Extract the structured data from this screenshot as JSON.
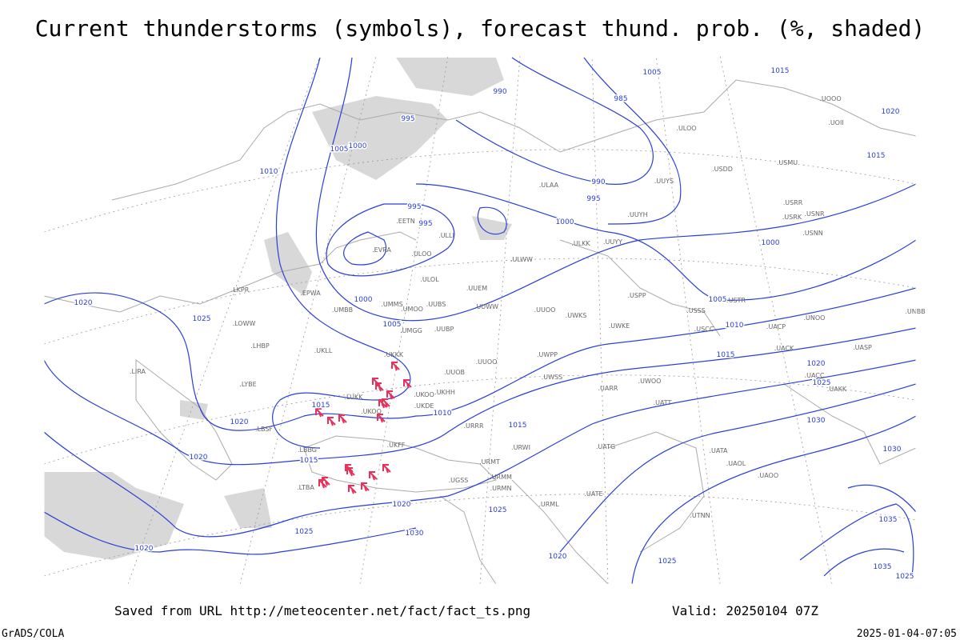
{
  "header": {
    "title": "Current thunderstorms (symbols), forecast thund. prob. (%, shaded)"
  },
  "map": {
    "isobar_labels": [
      990,
      995,
      985,
      1005,
      1015,
      1020,
      1015,
      990,
      995,
      1000,
      1000,
      1005,
      1000,
      1010,
      995,
      995,
      1000,
      1005,
      1005,
      1010,
      1015,
      1020,
      1025,
      1030,
      1020,
      1025,
      1015,
      1020,
      1010,
      1015,
      1020,
      1015,
      1020,
      1025,
      1030,
      1025,
      1020,
      1020,
      1025,
      1030,
      1035,
      1035,
      1025
    ],
    "station_labels": [
      ".ULAA",
      ".UUYS",
      ".UUYH",
      ".ULKK",
      ".UUYY",
      ".ULWW",
      ".ULOO",
      ".ULOL",
      ".UUEM",
      ".UUWW",
      ".UUOO",
      ".UWKS",
      ".UWKE",
      ".USSS",
      ".USCC",
      ".UMMS",
      ".UMOO",
      ".UUBS",
      ".UMGG",
      ".UUBP",
      ".UKKK",
      ".UUOO",
      ".UUOB",
      ".UWPP",
      ".UWSS",
      ".UARR",
      ".UWOO",
      ".UATT",
      ".UKHH",
      ".UKOO",
      ".UKDE",
      ".LUKK",
      ".UKOO",
      ".UKFF",
      ".URRR",
      ".URWI",
      ".URMT",
      ".URMM",
      ".URMN",
      ".UGSS",
      ".LBSF",
      ".LBBG",
      ".LTBA",
      ".LYBE",
      ".LHBP",
      ".LKPR",
      ".LOWW",
      ".LIRA",
      ".EPWA",
      ".UMBB",
      ".EVRA",
      ".EETN",
      ".ULLI",
      ".UKLL",
      ".UACC",
      ".UAKK",
      ".UACK",
      ".UASP",
      ".UATG",
      ".UATA",
      ".UAOL",
      ".UAOO",
      ".UTNN",
      ".UATE",
      ".URML",
      ".USPP",
      ".USDD",
      ".USMU",
      ".USRR",
      ".USRK",
      ".USNR",
      ".USNN",
      ".USTR",
      ".UNOO",
      ".UACP",
      ".UNBB",
      ".UOOO",
      ".UOII",
      ".ULOO"
    ]
  },
  "footer": {
    "source": "Saved from URL http://meteocenter.net/fact/fact_ts.png",
    "valid": "Valid: 20250104 07Z",
    "software": "GrADS/COLA",
    "timestamp": "2025-01-04-07:05"
  }
}
